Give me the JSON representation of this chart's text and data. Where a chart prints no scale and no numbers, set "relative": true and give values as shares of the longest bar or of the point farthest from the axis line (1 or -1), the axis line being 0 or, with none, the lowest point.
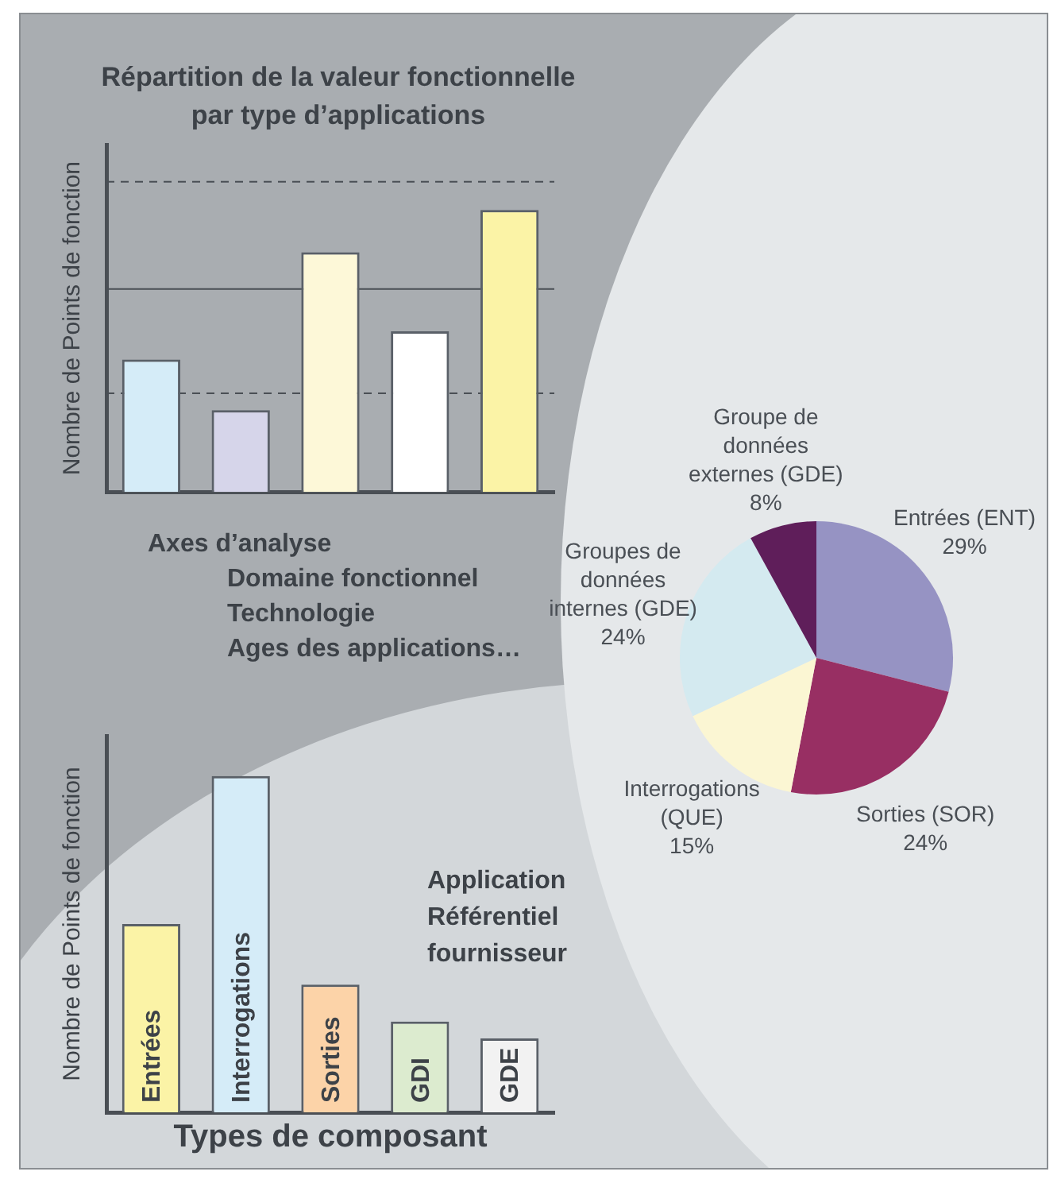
{
  "chart_data": [
    {
      "type": "bar",
      "title": "Répartition de la valeur fonctionnelle par type d’applications",
      "ylabel": "Nombre de Points de fonction",
      "relative": true,
      "categories": [
        null,
        null,
        null,
        null,
        null
      ],
      "values": [
        0.47,
        0.29,
        0.85,
        0.57,
        1
      ],
      "colors": [
        "#d5ecf8",
        "#d6d5ea",
        "#fdf8d8",
        "#ffffff",
        "#fbf3a6"
      ],
      "ref_lines": [
        {
          "axis": "y",
          "value": 1.1,
          "line_style": "dashed",
          "color": "#4a4f55"
        },
        {
          "axis": "y",
          "value": 0.72,
          "line_style": "solid",
          "color": "#4a4f55"
        },
        {
          "axis": "y",
          "value": 0.35,
          "line_style": "dashed",
          "color": "#4a4f55"
        }
      ],
      "annotations": [
        "Axes d’analyse",
        "Domaine fonctionnel",
        "Technologie",
        "Ages des applications…"
      ],
      "grid": false,
      "legend": false
    },
    {
      "type": "pie",
      "categories": [
        "Entrées (ENT)",
        "Sorties (SOR)",
        "Interrogations (QUE)",
        "Groupes de données internes (GDE)",
        "Groupe de données externes (GDE)"
      ],
      "values": [
        29,
        24,
        15,
        24,
        8
      ],
      "colors": [
        "#9693c3",
        "#982f63",
        "#fbf6d3",
        "#d4eaf0",
        "#5f1e5a"
      ],
      "value_labels": [
        "29%",
        "24%",
        "15%",
        "24%",
        "8%"
      ],
      "legend": false
    },
    {
      "type": "bar",
      "xlabel": "Types de composant",
      "ylabel": "Nombre de Points de fonction",
      "relative": true,
      "categories": [
        "Entrées",
        "Interrogations",
        "Sorties",
        "GDI",
        "GDE"
      ],
      "values": [
        0.56,
        1,
        0.38,
        0.27,
        0.22
      ],
      "colors": [
        "#fbf3a6",
        "#d5ecf8",
        "#fcd3a8",
        "#dcebcf",
        "#f2f2f2"
      ],
      "annotations": [
        "Application",
        "Référentiel",
        "fournisseur"
      ],
      "grid": false,
      "legend": false
    }
  ]
}
